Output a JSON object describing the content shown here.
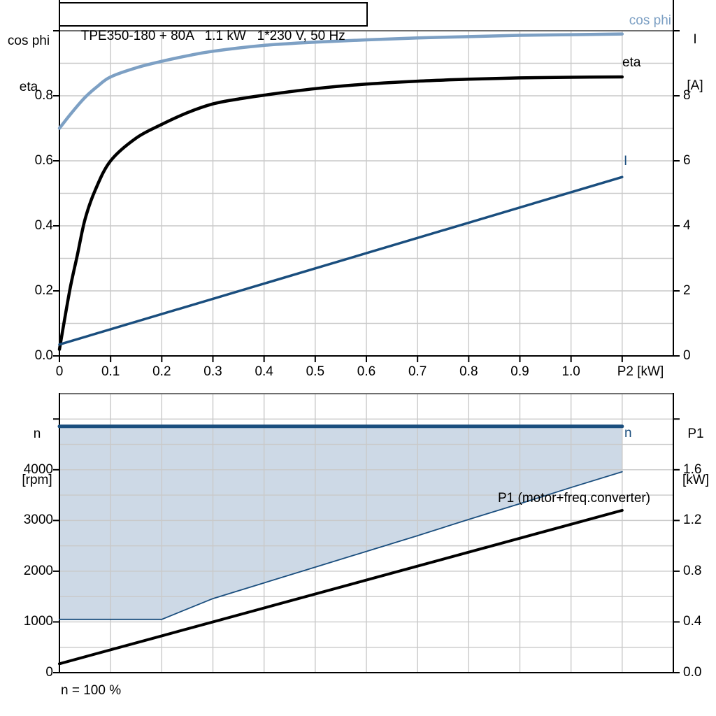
{
  "colors": {
    "background": "#ffffff",
    "axis": "#000000",
    "grid": "#c9c9c9",
    "plot_border": "#6f6f6f",
    "cos_phi_curve": "#7da0c4",
    "eta_curve": "#000000",
    "current_curve": "#1a4e7e",
    "n_curve": "#1a4e7e",
    "min_speed_curve": "#1a4e7e",
    "p1_curve": "#000000",
    "shade": "#cdd9e6",
    "text": "#000000"
  },
  "top_chart": {
    "title": "TPE350-180 + 80A   1.1 kW   1*230 V, 50 Hz",
    "left_axis": {
      "label_line1": "cos phi",
      "label_line2": "eta",
      "ticks": [
        "0.0",
        "0.2",
        "0.4",
        "0.6",
        "0.8"
      ]
    },
    "right_axis": {
      "label_line1": "I",
      "label_line2": "[A]",
      "ticks": [
        "0",
        "2",
        "4",
        "6",
        "8"
      ]
    },
    "x_axis": {
      "ticks": [
        "0",
        "0.1",
        "0.2",
        "0.3",
        "0.4",
        "0.5",
        "0.6",
        "0.7",
        "0.8",
        "0.9",
        "1.0"
      ],
      "label": "P2 [kW]"
    },
    "curve_labels": {
      "cos_phi": "cos phi",
      "eta": "eta",
      "current": "I"
    }
  },
  "bottom_chart": {
    "left_axis": {
      "label_line1": "n",
      "label_line2": "[rpm]",
      "ticks": [
        "0",
        "1000",
        "2000",
        "3000",
        "4000"
      ]
    },
    "right_axis": {
      "label_line1": "P1",
      "label_line2": "[kW]",
      "ticks": [
        "0.0",
        "0.4",
        "0.8",
        "1.2",
        "1.6"
      ]
    },
    "curve_labels": {
      "n": "n",
      "p1": "P1 (motor+freq.converter)"
    },
    "footnote": "n = 100 %"
  },
  "chart_data": [
    {
      "type": "line",
      "title": "TPE350-180 + 80A  1.1 kW  1*230 V, 50 Hz",
      "xlabel": "P2 [kW]",
      "xlim": [
        0,
        1.2
      ],
      "x_tick_values": [
        0,
        0.1,
        0.2,
        0.3,
        0.4,
        0.5,
        0.6,
        0.7,
        0.8,
        0.9,
        1.0,
        1.1
      ],
      "grid": true,
      "left_axis": {
        "name": "cos phi / eta",
        "range": [
          0,
          1.0
        ],
        "tick_values": [
          0,
          0.2,
          0.4,
          0.6,
          0.8,
          1.0
        ]
      },
      "right_axis": {
        "name": "I [A]",
        "range": [
          0,
          10
        ],
        "tick_values": [
          0,
          2,
          4,
          6,
          8,
          10
        ]
      },
      "series": [
        {
          "name": "cos phi",
          "axis": "left",
          "color_key": "cos_phi_curve",
          "width": 4.5,
          "smooth": true,
          "points": [
            [
              0,
              0.7
            ],
            [
              0.025,
              0.75
            ],
            [
              0.05,
              0.795
            ],
            [
              0.075,
              0.83
            ],
            [
              0.1,
              0.858
            ],
            [
              0.15,
              0.886
            ],
            [
              0.2,
              0.906
            ],
            [
              0.25,
              0.923
            ],
            [
              0.3,
              0.937
            ],
            [
              0.4,
              0.955
            ],
            [
              0.5,
              0.965
            ],
            [
              0.6,
              0.972
            ],
            [
              0.7,
              0.978
            ],
            [
              0.8,
              0.982
            ],
            [
              0.9,
              0.986
            ],
            [
              1.0,
              0.988
            ],
            [
              1.1,
              0.99
            ]
          ]
        },
        {
          "name": "eta",
          "axis": "left",
          "color_key": "eta_curve",
          "width": 4.5,
          "smooth": true,
          "points": [
            [
              0,
              0.02
            ],
            [
              0.02,
              0.2
            ],
            [
              0.035,
              0.31
            ],
            [
              0.05,
              0.42
            ],
            [
              0.07,
              0.51
            ],
            [
              0.1,
              0.6
            ],
            [
              0.15,
              0.67
            ],
            [
              0.2,
              0.712
            ],
            [
              0.25,
              0.748
            ],
            [
              0.3,
              0.775
            ],
            [
              0.35,
              0.79
            ],
            [
              0.4,
              0.802
            ],
            [
              0.5,
              0.822
            ],
            [
              0.6,
              0.836
            ],
            [
              0.7,
              0.845
            ],
            [
              0.8,
              0.851
            ],
            [
              0.9,
              0.855
            ],
            [
              1.0,
              0.857
            ],
            [
              1.1,
              0.858
            ]
          ]
        },
        {
          "name": "I",
          "axis": "right",
          "color_key": "current_curve",
          "width": 3.5,
          "smooth": false,
          "points": [
            [
              0,
              0.35
            ],
            [
              1.1,
              5.5
            ]
          ]
        }
      ]
    },
    {
      "type": "line",
      "title": "",
      "xlabel": "",
      "xlim": [
        0,
        1.2
      ],
      "x_tick_values": [],
      "grid": true,
      "left_axis": {
        "name": "n [rpm]",
        "range": [
          0,
          5500
        ],
        "tick_values": [
          0,
          1000,
          2000,
          3000,
          4000,
          5000
        ]
      },
      "right_axis": {
        "name": "P1 [kW]",
        "range": [
          0,
          2.2
        ],
        "tick_values": [
          0,
          0.4,
          0.8,
          1.2,
          1.6,
          2.0
        ]
      },
      "annotation": "n = 100 %",
      "series": [
        {
          "name": "n",
          "axis": "left",
          "color_key": "n_curve",
          "width": 5,
          "smooth": false,
          "points": [
            [
              0,
              4855
            ],
            [
              1.1,
              4855
            ]
          ]
        },
        {
          "name": "speed range lower bound",
          "axis": "left",
          "color_key": "min_speed_curve",
          "width": 1.8,
          "smooth": false,
          "shade_to_n": true,
          "points": [
            [
              0,
              1050
            ],
            [
              0.2,
              1050
            ],
            [
              0.3,
              1460
            ],
            [
              0.4,
              1770
            ],
            [
              0.5,
              2080
            ],
            [
              0.6,
              2390
            ],
            [
              0.7,
              2700
            ],
            [
              0.8,
              3020
            ],
            [
              0.9,
              3330
            ],
            [
              1.0,
              3650
            ],
            [
              1.1,
              3960
            ]
          ]
        },
        {
          "name": "P1 (motor+freq.converter)",
          "axis": "right",
          "color_key": "p1_curve",
          "width": 4,
          "smooth": false,
          "points": [
            [
              0,
              0.07
            ],
            [
              0.2,
              0.29
            ],
            [
              0.4,
              0.51
            ],
            [
              0.6,
              0.73
            ],
            [
              0.8,
              0.95
            ],
            [
              1.0,
              1.17
            ],
            [
              1.1,
              1.28
            ]
          ]
        }
      ]
    }
  ]
}
